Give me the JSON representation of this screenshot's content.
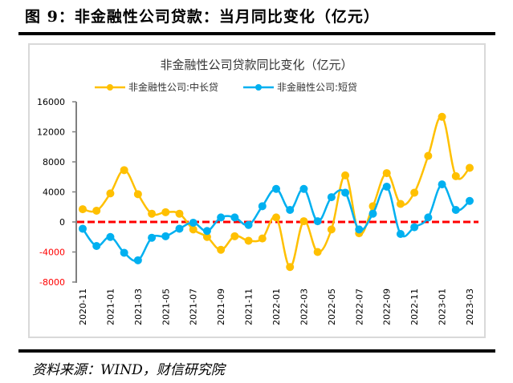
{
  "figure": {
    "title": "图 9：非金融性公司贷款：当月同比变化（亿元）",
    "source": "资料来源：WIND，财信研究院"
  },
  "chart_data": {
    "type": "line",
    "title": "非金融性公司贷款同比变化（亿元）",
    "xlabel": "",
    "ylabel": "",
    "ylim": [
      -8000,
      16000
    ],
    "yticks": [
      16000,
      12000,
      8000,
      4000,
      0,
      -4000,
      -8000
    ],
    "negative_tick_color": "#ff0000",
    "grid": false,
    "legend_position": "top",
    "zero_line": {
      "value": 0,
      "color": "#ff0000",
      "style": "dashed"
    },
    "x": [
      "2020-11",
      "2020-12",
      "2021-01",
      "2021-02",
      "2021-03",
      "2021-04",
      "2021-05",
      "2021-06",
      "2021-07",
      "2021-08",
      "2021-09",
      "2021-10",
      "2021-11",
      "2021-12",
      "2022-01",
      "2022-02",
      "2022-03",
      "2022-04",
      "2022-05",
      "2022-06",
      "2022-07",
      "2022-08",
      "2022-09",
      "2022-10",
      "2022-11",
      "2022-12",
      "2023-01",
      "2023-02",
      "2023-03"
    ],
    "x_tick_labels": [
      "2020-11",
      "2021-01",
      "2021-03",
      "2021-05",
      "2021-07",
      "2021-09",
      "2021-11",
      "2022-01",
      "2022-03",
      "2022-05",
      "2022-07",
      "2022-09",
      "2022-11",
      "2023-01",
      "2023-03"
    ],
    "series": [
      {
        "name": "非金融性公司:中长贷",
        "color": "#ffc000",
        "values": [
          1700,
          1500,
          3800,
          6900,
          3700,
          1100,
          1300,
          1100,
          -1000,
          -2000,
          -3700,
          -1900,
          -2500,
          -2200,
          600,
          -6000,
          100,
          -4000,
          -1000,
          6200,
          -1500,
          2100,
          6500,
          2400,
          3900,
          8800,
          14000,
          6100,
          7200
        ]
      },
      {
        "name": "非金融性公司:短贷",
        "color": "#00b0f0",
        "values": [
          -900,
          -3200,
          -2000,
          -4100,
          -5100,
          -2100,
          -1900,
          -900,
          -100,
          -1200,
          600,
          600,
          -400,
          2100,
          4400,
          1600,
          4400,
          100,
          3300,
          3900,
          -1000,
          1100,
          4700,
          -1600,
          -700,
          600,
          5000,
          1600,
          2800
        ]
      }
    ]
  }
}
